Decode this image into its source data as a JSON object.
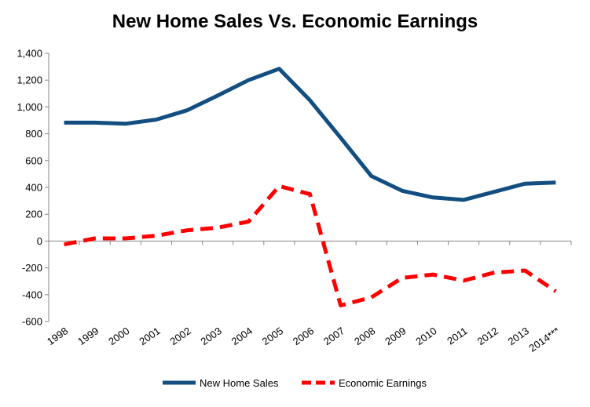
{
  "chart_data": {
    "type": "line",
    "title": "New Home Sales Vs. Economic Earnings",
    "xlabel": "",
    "ylabel": "",
    "categories": [
      "1998",
      "1999",
      "2000",
      "2001",
      "2002",
      "2003",
      "2004",
      "2005",
      "2006",
      "2007",
      "2008",
      "2009",
      "2010",
      "2011",
      "2012",
      "2013",
      "2014***"
    ],
    "ylim": [
      -600,
      1400
    ],
    "yticks": [
      "1,400",
      "1,200",
      "1,000",
      "800",
      "600",
      "400",
      "200",
      "0",
      "-200",
      "-400",
      "-600"
    ],
    "grid": false,
    "legend_position": "bottom",
    "series": [
      {
        "name": "New Home Sales",
        "color": "#124e80",
        "style": "solid",
        "values": [
          883,
          883,
          875,
          906,
          975,
          1085,
          1200,
          1285,
          1050,
          770,
          485,
          375,
          325,
          307,
          367,
          428,
          437
        ]
      },
      {
        "name": "Economic Earnings",
        "color": "#ff0000",
        "style": "dashed",
        "values": [
          -25,
          20,
          20,
          40,
          80,
          100,
          145,
          410,
          350,
          -480,
          -420,
          -275,
          -250,
          -295,
          -235,
          -220,
          -375
        ]
      }
    ]
  }
}
